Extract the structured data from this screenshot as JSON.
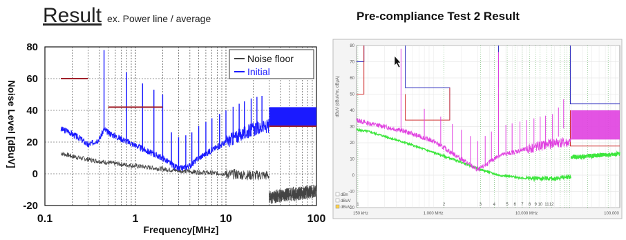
{
  "header": {
    "left_title": "Result",
    "left_subtitle": "ex. Power line / average",
    "right_title": "Pre-compliance Test 2 Result"
  },
  "colors": {
    "noise_floor": "#444444",
    "initial": "#1a1aff",
    "limit": "#a0202a",
    "right_trace": "#e040e0",
    "right_floor": "#3ce63c",
    "right_limit_blue": "#3030c0",
    "right_limit_red": "#d03030"
  },
  "chart_data": [
    {
      "type": "line",
      "title": "",
      "xlabel": "Frequency[MHz]",
      "ylabel": "Noise Level [dBuV]",
      "xscale": "log",
      "xlim": [
        0.1,
        100
      ],
      "ylim": [
        -20,
        80
      ],
      "x_ticks": [
        "0.1",
        "1",
        "10",
        "100"
      ],
      "y_ticks": [
        "80",
        "60",
        "40",
        "20",
        "0",
        "-20"
      ],
      "grid": true,
      "legend": {
        "placement": "top-right",
        "entries": [
          "Noise floor",
          "Initial"
        ]
      },
      "series": [
        {
          "name": "Noise floor",
          "x": [
            0.15,
            0.2,
            0.3,
            0.5,
            0.7,
            1,
            2,
            3,
            5,
            10,
            20,
            29.9,
            30,
            50,
            100
          ],
          "y": [
            13,
            11,
            9,
            7,
            6,
            5,
            3,
            2,
            1,
            0,
            -1,
            -1,
            -15,
            -13,
            -11
          ]
        },
        {
          "name": "Initial",
          "x": [
            0.15,
            0.18,
            0.2,
            0.25,
            0.3,
            0.4,
            0.45,
            0.5,
            0.7,
            1,
            1.5,
            2,
            3,
            4,
            5,
            7,
            10,
            15,
            20,
            29.9,
            30,
            50,
            100
          ],
          "y": [
            28,
            27,
            25,
            22,
            18,
            22,
            28,
            26,
            22,
            18,
            13,
            10,
            3,
            5,
            10,
            15,
            20,
            25,
            28,
            30,
            36,
            37,
            37
          ]
        }
      ],
      "limits": [
        {
          "x": [
            0.15,
            0.3
          ],
          "y": [
            60,
            60
          ]
        },
        {
          "x": [
            0.5,
            2
          ],
          "y": [
            42,
            42
          ]
        },
        {
          "x": [
            30,
            100
          ],
          "y": [
            30,
            30
          ]
        }
      ],
      "peaks": [
        {
          "x": 0.45,
          "y": 78
        },
        {
          "x": 0.8,
          "y": 64
        },
        {
          "x": 1.2,
          "y": 57
        },
        {
          "x": 1.6,
          "y": 53
        },
        {
          "x": 2.0,
          "y": 50
        }
      ]
    },
    {
      "type": "line",
      "title": "",
      "xlabel": "",
      "ylabel": "dBuV  (dBuV/m, dBμA)",
      "xscale": "log",
      "xlim": [
        0.15,
        100
      ],
      "ylim": [
        -20,
        80
      ],
      "x_ticks": [
        "150 kHz",
        "1.000 MHz",
        "10.000 MHz",
        "100.000"
      ],
      "y_ticks": [
        "80",
        "70",
        "60",
        "50",
        "40",
        "30",
        "20",
        "10",
        "0",
        "-10",
        "-20"
      ],
      "grid": true,
      "checkboxes": [
        "dBn",
        "dBuV",
        "dBuV"
      ],
      "marker_numbers": [
        "1",
        "2",
        "3",
        "4",
        "5",
        "6",
        "7",
        "8",
        "9",
        "10",
        "11",
        "12"
      ],
      "series": [
        {
          "name": "",
          "x": [
            0.15,
            0.2,
            0.3,
            0.5,
            1,
            2,
            3,
            5,
            10,
            20,
            30,
            50,
            100
          ],
          "y": [
            34,
            32,
            30,
            27,
            21,
            10,
            3,
            12,
            16,
            20,
            36,
            36,
            36
          ]
        },
        {
          "name": "",
          "x": [
            0.15,
            0.2,
            0.3,
            0.5,
            1,
            2,
            3,
            5,
            10,
            20,
            29.9,
            30,
            50,
            100
          ],
          "y": [
            28,
            27,
            24,
            20,
            14,
            8,
            4,
            0,
            -2,
            -2,
            -1,
            11,
            12,
            13
          ]
        }
      ],
      "limits_blue": [
        {
          "x": [
            0.15,
            0.18
          ],
          "y": [
            70,
            70
          ]
        },
        {
          "x": [
            0.5,
            1.5
          ],
          "y": [
            54,
            54
          ]
        },
        {
          "x": [
            30,
            100
          ],
          "y": [
            44,
            44
          ]
        }
      ],
      "limits_red": [
        {
          "x": [
            0.15,
            0.18
          ],
          "y": [
            50,
            50
          ]
        },
        {
          "x": [
            0.5,
            1.5
          ],
          "y": [
            34,
            34
          ]
        },
        {
          "x": [
            30,
            100
          ],
          "y": [
            18,
            18
          ]
        }
      ]
    }
  ]
}
